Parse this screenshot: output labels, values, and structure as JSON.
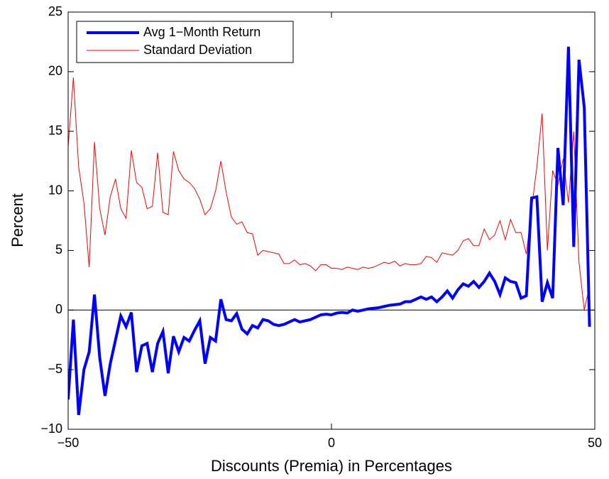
{
  "chart_data": {
    "type": "line",
    "xlabel": "Discounts (Premia) in Percentages",
    "ylabel": "Percent",
    "x": [
      -50,
      -49,
      -48,
      -47,
      -46,
      -45,
      -44,
      -43,
      -42,
      -41,
      -40,
      -39,
      -38,
      -37,
      -36,
      -35,
      -34,
      -33,
      -32,
      -31,
      -30,
      -29,
      -28,
      -27,
      -26,
      -25,
      -24,
      -23,
      -22,
      -21,
      -20,
      -19,
      -18,
      -17,
      -16,
      -15,
      -14,
      -13,
      -12,
      -11,
      -10,
      -9,
      -8,
      -7,
      -6,
      -5,
      -4,
      -3,
      -2,
      -1,
      0,
      1,
      2,
      3,
      4,
      5,
      6,
      7,
      8,
      9,
      10,
      11,
      12,
      13,
      14,
      15,
      16,
      17,
      18,
      19,
      20,
      21,
      22,
      23,
      24,
      25,
      26,
      27,
      28,
      29,
      30,
      31,
      32,
      33,
      34,
      35,
      36,
      37,
      38,
      39,
      40,
      41,
      42,
      43,
      44,
      45,
      46,
      47,
      48,
      49
    ],
    "series": [
      {
        "name": "Avg 1−Month Return",
        "color": "#0000ff",
        "width": 4,
        "values": [
          -7.5,
          -0.8,
          -8.8,
          -5,
          -3.5,
          1.3,
          -4,
          -7.2,
          -4.5,
          -2.5,
          -0.5,
          -1.4,
          -0.2,
          -5.2,
          -3,
          -2.8,
          -5.2,
          -2.8,
          -1.8,
          -5.3,
          -2.2,
          -3.5,
          -2.3,
          -2.6,
          -1.7,
          -0.9,
          -4.5,
          -2.3,
          -2.6,
          0.9,
          -0.8,
          -0.9,
          -0.3,
          -1.6,
          -2,
          -1.3,
          -1.5,
          -0.8,
          -0.9,
          -1.2,
          -1.3,
          -1.2,
          -1,
          -0.8,
          -1,
          -0.9,
          -0.8,
          -0.6,
          -0.4,
          -0.35,
          -0.4,
          -0.25,
          -0.2,
          -0.25,
          0,
          -0.1,
          0,
          0.1,
          0.15,
          0.2,
          0.3,
          0.4,
          0.45,
          0.5,
          0.7,
          0.7,
          0.9,
          1.1,
          0.9,
          1.1,
          0.7,
          1.1,
          1.6,
          1,
          1.7,
          2.2,
          2,
          2.4,
          1.9,
          2.4,
          3.1,
          2.4,
          1.3,
          2.7,
          2.4,
          2.3,
          1,
          1.2,
          9.4,
          9.5,
          0.7,
          2.3,
          1,
          13.6,
          8.8,
          22.1,
          5.3,
          21,
          17,
          -1.4
        ]
      },
      {
        "name": "Standard Deviation",
        "color": "#ff0000",
        "width": 1,
        "values": [
          13.7,
          19.5,
          12,
          9,
          3.6,
          14.1,
          8.5,
          6.3,
          9.5,
          11,
          8.5,
          7.7,
          13.4,
          10.7,
          10.3,
          8.5,
          8.7,
          13.2,
          8.2,
          8,
          13.3,
          11.7,
          11,
          10.7,
          10.2,
          9.3,
          8,
          8.5,
          10,
          12.5,
          9.9,
          7.8,
          7.2,
          7.4,
          6.5,
          6.4,
          4.6,
          5,
          4.9,
          4.8,
          4.7,
          3.9,
          3.9,
          4.2,
          3.8,
          3.9,
          3.7,
          3.3,
          3.8,
          3.8,
          3.5,
          3.5,
          3.4,
          3.6,
          3.5,
          3.4,
          3.6,
          3.5,
          3.6,
          3.8,
          4,
          3.9,
          4.1,
          3.7,
          3.9,
          3.8,
          3.8,
          3.9,
          4.5,
          4.4,
          4,
          4.8,
          4.7,
          4.6,
          5,
          5.8,
          6,
          5.4,
          5.4,
          6.8,
          5.9,
          6.3,
          7.5,
          5.9,
          7.6,
          6.5,
          6.5,
          4.7,
          8.5,
          12,
          16.5,
          5,
          11.7,
          10.5,
          12.7,
          9,
          15,
          4,
          0,
          2
        ]
      }
    ],
    "xlim": [
      -50,
      50
    ],
    "xticks": [
      {
        "value": -50,
        "label": "−50"
      },
      0,
      50
    ],
    "ylim": [
      -10,
      25
    ],
    "yticks": [
      {
        "value": -10,
        "label": "−10"
      },
      {
        "value": -5,
        "label": "−5"
      },
      0,
      5,
      10,
      15,
      20,
      25
    ],
    "reference_line": 0,
    "legend": "upper left",
    "grid": false
  }
}
